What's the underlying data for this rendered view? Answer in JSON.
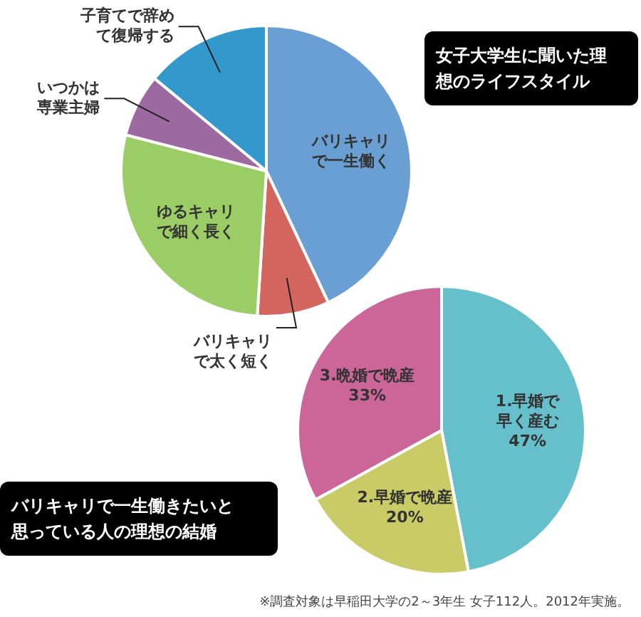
{
  "chart_data": [
    {
      "type": "pie",
      "title": "女子大学生に聞いた理想のライフスタイル",
      "categories": [
        "バリキャリで一生働く",
        "バリキャリで太く短く",
        "ゆるキャリで細く長く",
        "いつかは専業主婦",
        "子育てで辞めて復帰する"
      ],
      "values": [
        43,
        8,
        28,
        7,
        14
      ],
      "colors": [
        "#6a9fd4",
        "#d4665f",
        "#9ccc65",
        "#9c6aa0",
        "#3399cc"
      ]
    },
    {
      "type": "pie",
      "title": "バリキャリで一生働きたいと思っている人の理想の結婚",
      "categories": [
        "1.早婚で早く産む",
        "2.早婚で晩産",
        "3.晩婚で晩産"
      ],
      "values": [
        47,
        20,
        33
      ],
      "value_labels": [
        "47%",
        "20%",
        "33%"
      ],
      "colors": [
        "#66c0cc",
        "#c9cc66",
        "#cc6699"
      ],
      "annotations": [
        "※調査対象は早稲田大学の2～3年生 女子112人。2012年実施。"
      ]
    }
  ]
}
